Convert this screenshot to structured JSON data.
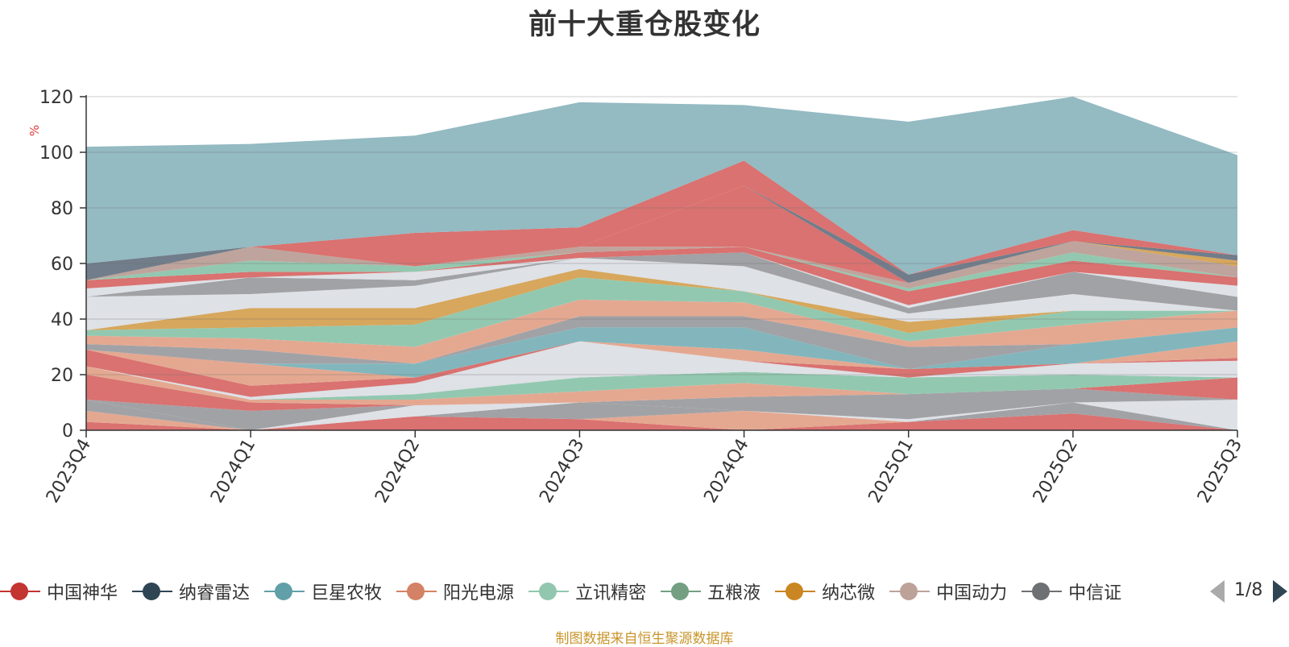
{
  "title": "前十大重仓股变化",
  "footer": "制图数据来自恒生聚源数据库",
  "legend": {
    "items": [
      {
        "name": "中国神华",
        "color": "#c23531"
      },
      {
        "name": "纳睿雷达",
        "color": "#2f4554"
      },
      {
        "name": "巨星农牧",
        "color": "#61a0a8"
      },
      {
        "name": "阳光电源",
        "color": "#d48265"
      },
      {
        "name": "立讯精密",
        "color": "#91c7ae"
      },
      {
        "name": "五粮液",
        "color": "#749f83"
      },
      {
        "name": "纳芯微",
        "color": "#ca8622"
      },
      {
        "name": "中国动力",
        "color": "#bda29a"
      },
      {
        "name": "中信证",
        "color": "#6e7074"
      }
    ],
    "page": "1/8"
  },
  "chart_data": {
    "type": "area",
    "stacked": true,
    "x": [
      "2023Q4",
      "2024Q1",
      "2024Q2",
      "2024Q3",
      "2024Q4",
      "2025Q1",
      "2025Q2",
      "2025Q3"
    ],
    "ylabel": "%",
    "ylim": [
      0,
      120
    ],
    "yticks": [
      0,
      20,
      40,
      60,
      80,
      100,
      120
    ],
    "grid": true,
    "series": [
      {
        "values": [
          3,
          0,
          5,
          4,
          0,
          3,
          6,
          0
        ],
        "color": "#d86f6d"
      },
      {
        "values": [
          4,
          0,
          0,
          0,
          7,
          0,
          0,
          0
        ],
        "color": "#e3a68f"
      },
      {
        "values": [
          4,
          0,
          0,
          6,
          0,
          0,
          4,
          0
        ],
        "color": "#9fa0a4"
      },
      {
        "values": [
          0,
          0,
          4,
          0,
          0,
          1,
          0,
          11
        ],
        "color": "#dde0e6"
      },
      {
        "values": [
          0,
          7,
          0,
          0,
          5,
          9,
          5,
          0
        ],
        "color": "#9fa0a4"
      },
      {
        "values": [
          9,
          3,
          0,
          0,
          0,
          0,
          0,
          8
        ],
        "color": "#d86f6d"
      },
      {
        "values": [
          3,
          1,
          2,
          4,
          5,
          0,
          0,
          0
        ],
        "color": "#e3a68f"
      },
      {
        "values": [
          0,
          0,
          2,
          5,
          4,
          6,
          5,
          0
        ],
        "color": "#91c7ae"
      },
      {
        "values": [
          0,
          1,
          4,
          13,
          4,
          0,
          4,
          6
        ],
        "color": "#dde0e6"
      },
      {
        "values": [
          6,
          4,
          2,
          0,
          0,
          3,
          0,
          1
        ],
        "color": "#d86f6d"
      },
      {
        "values": [
          0,
          8,
          0,
          0,
          4,
          0,
          0,
          6
        ],
        "color": "#e3a68f"
      },
      {
        "values": [
          0,
          0,
          5,
          5,
          8,
          0,
          7,
          5
        ],
        "color": "#7fb5bb"
      },
      {
        "values": [
          2,
          5,
          0,
          4,
          4,
          8,
          0,
          0
        ],
        "color": "#9fa0a4"
      },
      {
        "values": [
          3,
          4,
          6,
          6,
          5,
          2,
          7,
          6
        ],
        "color": "#e3a68f"
      },
      {
        "values": [
          2,
          4,
          8,
          8,
          4,
          3,
          5,
          0
        ],
        "color": "#91c7ae"
      },
      {
        "values": [
          0,
          7,
          6,
          3,
          0,
          4,
          0,
          0
        ],
        "color": "#d5a55a"
      },
      {
        "values": [
          12,
          5,
          8,
          4,
          9,
          3,
          6,
          0
        ],
        "color": "#dde0e6"
      },
      {
        "values": [
          0,
          6,
          2,
          0,
          5,
          2,
          8,
          5
        ],
        "color": "#9fa0a4"
      },
      {
        "values": [
          3,
          0,
          3,
          0,
          0,
          1,
          0,
          4
        ],
        "color": "#dde0e6"
      },
      {
        "values": [
          3,
          2,
          0,
          2,
          2,
          5,
          4,
          3
        ],
        "color": "#d86f6d"
      },
      {
        "values": [
          0,
          4,
          2,
          0,
          0,
          1,
          3,
          0
        ],
        "color": "#91c7ae"
      },
      {
        "values": [
          0,
          5,
          0,
          2,
          0,
          2,
          4,
          4
        ],
        "color": "#bda29a"
      },
      {
        "values": [
          0,
          0,
          0,
          0,
          22,
          0,
          0,
          0
        ],
        "color": "#d86f6d"
      },
      {
        "values": [
          0,
          0,
          0,
          0,
          0,
          0,
          0,
          2
        ],
        "color": "#d5a55a"
      },
      {
        "values": [
          6,
          0,
          0,
          0,
          0,
          3,
          0,
          2
        ],
        "color": "#6e7a88"
      },
      {
        "values": [
          0,
          0,
          12,
          7,
          9,
          0,
          4,
          0
        ],
        "color": "#d86f6d"
      },
      {
        "values": [
          42,
          37,
          35,
          45,
          20,
          55,
          48,
          36
        ],
        "color": "#92b9c1"
      }
    ]
  }
}
